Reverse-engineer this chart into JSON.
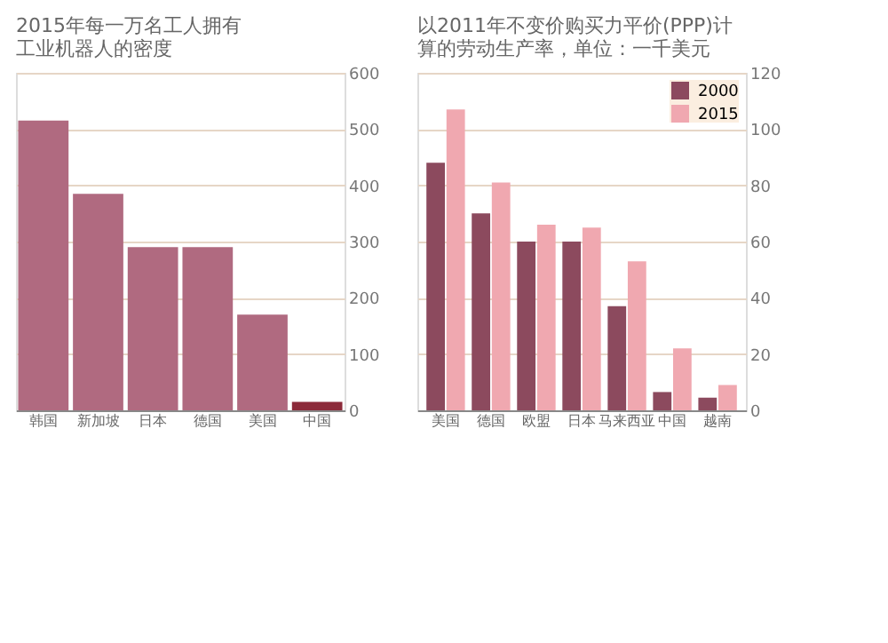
{
  "chart_data": [
    {
      "type": "bar",
      "title": [
        "2015年每一万名工人拥有",
        "工业机器人的密度"
      ],
      "categories": [
        "韩国",
        "新加坡",
        "日本",
        "德国",
        "美国",
        "中国"
      ],
      "values": [
        515,
        385,
        290,
        290,
        170,
        15
      ],
      "colors": [
        "#b06a80",
        "#b06a80",
        "#b06a80",
        "#b06a80",
        "#b06a80",
        "#8c2a3a"
      ],
      "ylim": [
        0,
        600
      ],
      "yticks": [
        0,
        100,
        200,
        300,
        400,
        500,
        600
      ],
      "grid": "y"
    },
    {
      "type": "bar",
      "title": [
        "以2011年不变价购买力平价(PPP)计",
        "算的劳动生产率，单位：一千美元"
      ],
      "categories": [
        "美国",
        "德国",
        "欧盟",
        "日本",
        "马来西亚",
        "中国",
        "越南"
      ],
      "series": [
        {
          "name": "2000",
          "color": "#8c4a5e",
          "values": [
            88,
            70,
            60,
            60,
            37,
            6.5,
            4.5
          ]
        },
        {
          "name": "2015",
          "color": "#f0a8b0",
          "values": [
            107,
            81,
            66,
            65,
            53,
            22,
            9
          ]
        }
      ],
      "ylim": [
        0,
        120
      ],
      "yticks": [
        0,
        20,
        40,
        60,
        80,
        100,
        120
      ],
      "grid": "y",
      "legend": "top right"
    }
  ]
}
